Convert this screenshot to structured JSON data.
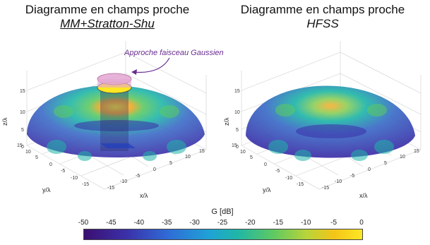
{
  "titles": {
    "left": {
      "line1": "Diagramme en champs proche",
      "line2": "MM+Stratton-Shu"
    },
    "right": {
      "line1": "Diagramme en champs proche",
      "line2": "HFSS"
    }
  },
  "annotation": "Approche faisceau Gaussien",
  "colors": {
    "low": "#3b30a8",
    "mid": "#1fb6a8",
    "high": "#fde724",
    "annotation": "#6a2c91",
    "beam": "#c87fb0"
  },
  "chart_data": [
    {
      "type": "heatmap",
      "title": "Diagramme en champs proche MM+Stratton-Shu",
      "description_surface": "hemisphere",
      "axes": {
        "xlabel": "x/λ",
        "ylabel": "y/λ",
        "zlabel": "z/λ",
        "x_ticks": [
          "-15",
          "-10",
          "-5",
          "0",
          "5",
          "10",
          "15"
        ],
        "y_ticks": [
          "15",
          "10",
          "5",
          "0",
          "-5",
          "-10",
          "-15"
        ],
        "z_ticks": [
          "0",
          "5",
          "10",
          "15"
        ],
        "xlim": [
          -15,
          15
        ],
        "ylim": [
          -15,
          15
        ],
        "zlim": [
          0,
          15
        ]
      },
      "grid": true,
      "colorscale_range_dB": [
        -50,
        0
      ]
    },
    {
      "type": "heatmap",
      "title": "Diagramme en champs proche HFSS",
      "description_surface": "hemisphere",
      "axes": {
        "xlabel": "x/λ",
        "ylabel": "y/λ",
        "zlabel": "z/λ",
        "x_ticks": [
          "-15",
          "-10",
          "-5",
          "0",
          "5",
          "10",
          "15"
        ],
        "y_ticks": [
          "15",
          "10",
          "5",
          "0",
          "-5",
          "-10",
          "-15"
        ],
        "z_ticks": [
          "0",
          "5",
          "10",
          "15"
        ],
        "xlim": [
          -15,
          15
        ],
        "ylim": [
          -15,
          15
        ],
        "zlim": [
          0,
          15
        ]
      },
      "grid": true,
      "colorscale_range_dB": [
        -50,
        0
      ]
    }
  ],
  "colorbar": {
    "label": "G [dB]",
    "ticks": [
      "-50",
      "-45",
      "-40",
      "-35",
      "-30",
      "-25",
      "-20",
      "-15",
      "-10",
      "-5",
      "0"
    ],
    "min": -50,
    "max": 0
  }
}
